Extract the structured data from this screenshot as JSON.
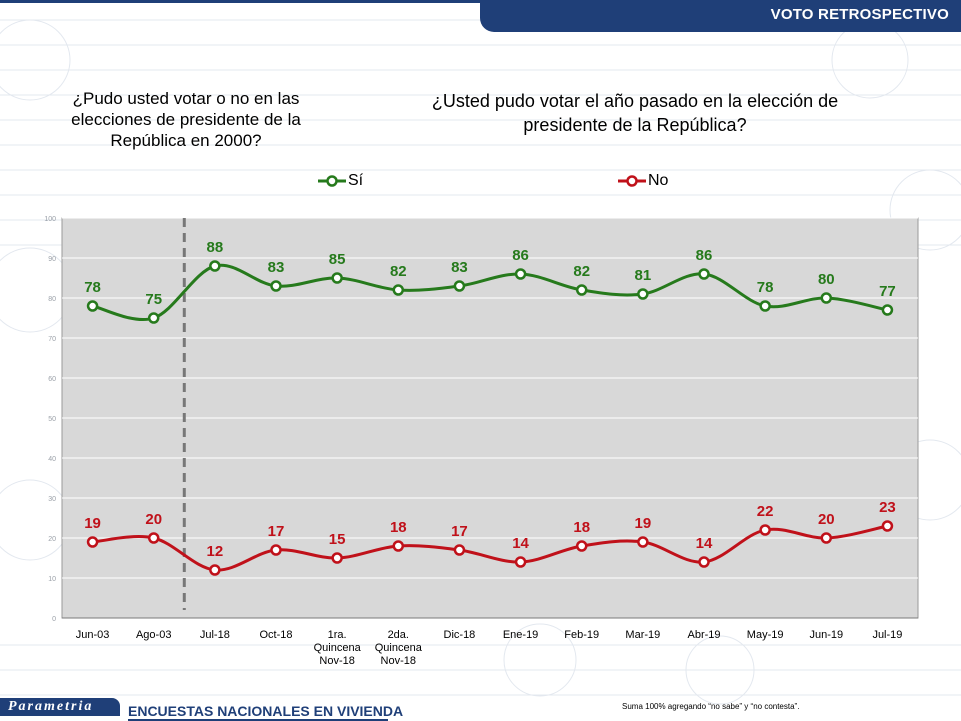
{
  "header": {
    "title": "VOTO RETROSPECTIVO"
  },
  "questions": {
    "left": "¿Pudo usted votar o no en las elecciones de presidente de la República en 2000?",
    "right": "¿Usted pudo votar el año pasado en la elección de presidente de la República?"
  },
  "watermark": {
    "word": "Parametria"
  },
  "colors": {
    "si": "#267a1c",
    "no": "#c0111a",
    "brand": "#1f3f78",
    "plot_bg": "#d8d8d8",
    "divider": "#777777"
  },
  "chart_data": {
    "type": "line",
    "categories": [
      "Jun-03",
      "Ago-03",
      "Jul-18",
      "Oct-18",
      "1ra. Quincena Nov-18",
      "2da. Quincena Nov-18",
      "Dic-18",
      "Ene-19",
      "Feb-19",
      "Mar-19",
      "Abr-19",
      "May-19",
      "Jun-19",
      "Jul-19"
    ],
    "category_lines": [
      [
        "Jun-03"
      ],
      [
        "Ago-03"
      ],
      [
        "Jul-18"
      ],
      [
        "Oct-18"
      ],
      [
        "1ra.",
        "Quincena",
        "Nov-18"
      ],
      [
        "2da.",
        "Quincena",
        "Nov-18"
      ],
      [
        "Dic-18"
      ],
      [
        "Ene-19"
      ],
      [
        "Feb-19"
      ],
      [
        "Mar-19"
      ],
      [
        "Abr-19"
      ],
      [
        "May-19"
      ],
      [
        "Jun-19"
      ],
      [
        "Jul-19"
      ]
    ],
    "series": [
      {
        "name": "Sí",
        "values": [
          78,
          75,
          88,
          83,
          85,
          82,
          83,
          86,
          82,
          81,
          86,
          78,
          80,
          77
        ]
      },
      {
        "name": "No",
        "values": [
          19,
          20,
          12,
          17,
          15,
          18,
          17,
          14,
          18,
          19,
          14,
          22,
          20,
          23
        ]
      }
    ],
    "ylim": [
      0,
      100
    ],
    "yticks": [
      0,
      10,
      20,
      30,
      40,
      50,
      60,
      70,
      80,
      90,
      100
    ],
    "grid": true,
    "legend": "top",
    "divider_after_category": "Ago-03"
  },
  "footer": {
    "logo": "Parametria",
    "title": "ENCUESTAS NACIONALES EN VIVIENDA",
    "note": "Suma 100% agregando “no sabe” y “no contesta”."
  }
}
